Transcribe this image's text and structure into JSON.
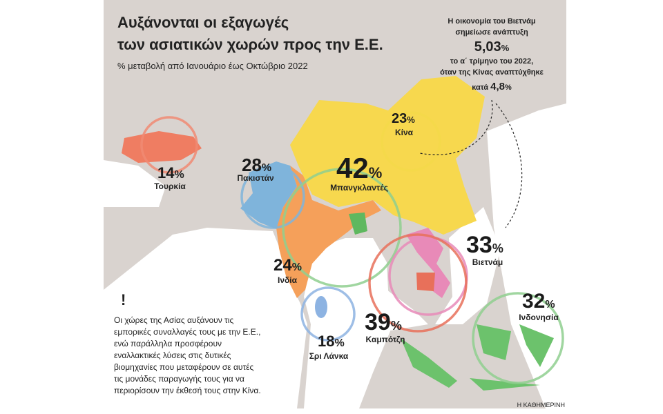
{
  "header": {
    "title_line1": "Αυξάνονται οι εξαγωγές",
    "title_line2": "των ασιατικών χωρών προς την Ε.Ε.",
    "subtitle": "% μεταβολή από Ιανουάριο έως Οκτώβριο 2022"
  },
  "callout": {
    "line1": "Η οικονομία του Βιετνάμ",
    "line2": "σημείωσε ανάπτυξη",
    "value1": "5,03",
    "unit1": "%",
    "line3": "το α΄ τρίμηνο του 2022,",
    "line4": "όταν της Κίνας αναπτύχθηκε",
    "prefix": "κατά",
    "value2": "4,8",
    "unit2": "%"
  },
  "places": [
    {
      "name": "Τουρκία",
      "value": 14,
      "unit": "%"
    },
    {
      "name": "Πακιστάν",
      "value": 28,
      "unit": "%"
    },
    {
      "name": "Ινδία",
      "value": 24,
      "unit": "%"
    },
    {
      "name": "Μπανγκλαντές",
      "value": 42,
      "unit": "%"
    },
    {
      "name": "Κίνα",
      "value": 23,
      "unit": "%"
    },
    {
      "name": "Σρι Λάνκα",
      "value": 18,
      "unit": "%"
    },
    {
      "name": "Βιετνάμ",
      "value": 33,
      "unit": "%"
    },
    {
      "name": "Καμπότζη",
      "value": 39,
      "unit": "%"
    },
    {
      "name": "Ινδονησία",
      "value": 32,
      "unit": "%"
    }
  ],
  "note": {
    "icon": "!",
    "lines": [
      "Οι χώρες της Ασίας αυξάνουν τις",
      "εμπορικές συναλλαγές τους με την Ε.Ε.,",
      "ενώ παράλληλα προσφέρουν",
      "εναλλακτικές λύσεις στις δυτικές",
      "βιομηχανίες που μεταφέρουν σε αυτές",
      "τις μονάδες παραγωγής τους για να",
      "περιορίσουν την έκθεσή τους στην Κίνα."
    ]
  },
  "credit": "Η ΚΑΘΗΜΕΡΙΝΗ"
}
